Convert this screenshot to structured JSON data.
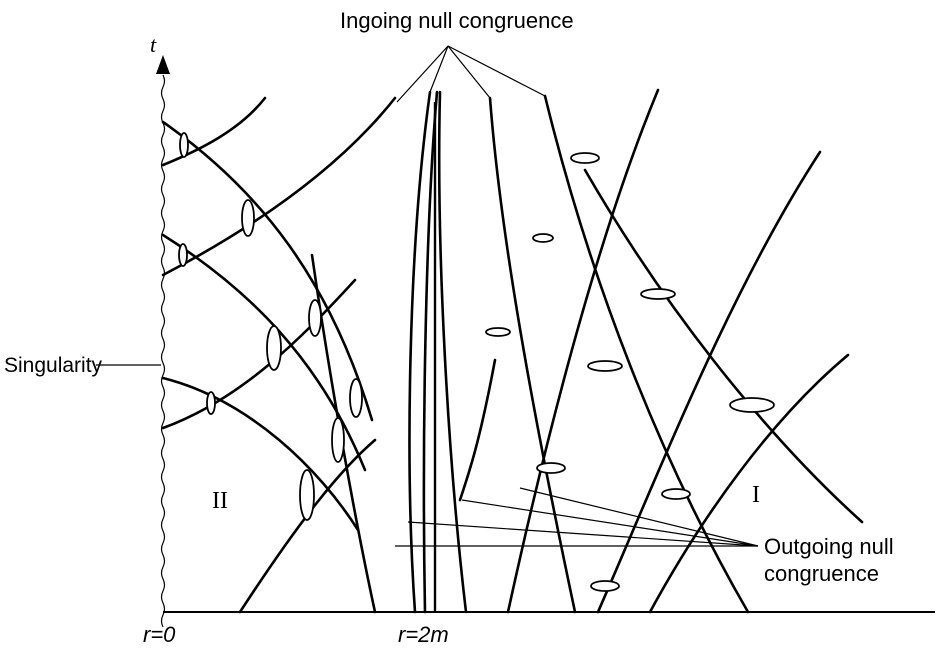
{
  "labels": {
    "t_axis": "t",
    "r_zero": "r=0",
    "r_two_m": "r=2m",
    "singularity": "Singularity",
    "ingoing": "Ingoing null congruence",
    "outgoing_line1": "Outgoing null",
    "outgoing_line2": "congruence",
    "region_one": "I",
    "region_two": "II"
  }
}
